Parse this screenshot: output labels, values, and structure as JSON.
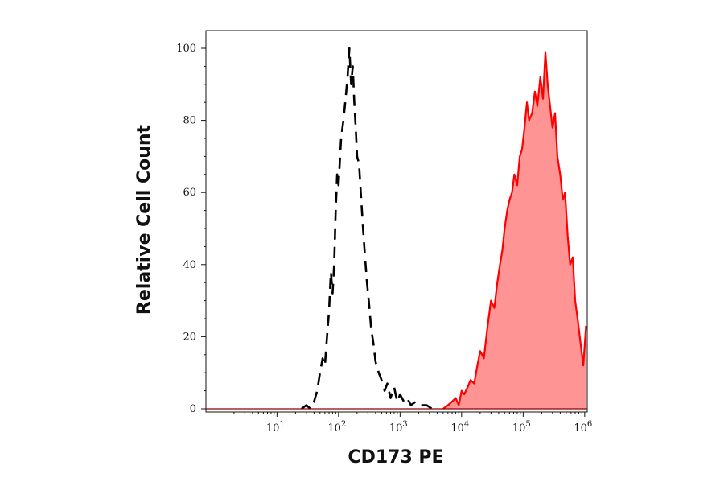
{
  "chart_data": {
    "type": "area",
    "title": "",
    "xlabel": "CD173 PE",
    "ylabel": "Relative Cell Count",
    "x_scale": "log",
    "xlim": [
      0.7,
      1100000
    ],
    "ylim": [
      0,
      100
    ],
    "grid": false,
    "legend": "none",
    "x_ticks": [
      {
        "base": "10",
        "exp": "1",
        "value": 10
      },
      {
        "base": "10",
        "exp": "2",
        "value": 100
      },
      {
        "base": "10",
        "exp": "3",
        "value": 1000
      },
      {
        "base": "10",
        "exp": "4",
        "value": 10000
      },
      {
        "base": "10",
        "exp": "5",
        "value": 100000
      },
      {
        "base": "10",
        "exp": "6",
        "value": 1000000
      }
    ],
    "y_ticks": [
      "0",
      "20",
      "40",
      "60",
      "80",
      "100"
    ],
    "series": [
      {
        "style": "dashed",
        "color": "#000000",
        "x": [
          25,
          30,
          35,
          40,
          45,
          50,
          55,
          60,
          65,
          70,
          75,
          80,
          85,
          90,
          95,
          100,
          110,
          120,
          130,
          140,
          150,
          160,
          170,
          180,
          190,
          200,
          215,
          230,
          250,
          270,
          290,
          310,
          340,
          370,
          400,
          450,
          500,
          560,
          620,
          700,
          800,
          900,
          1000,
          1150,
          1300,
          1500,
          1800,
          2200,
          2700,
          3300,
          4000
        ],
        "y": [
          0,
          1,
          0,
          2,
          5,
          10,
          14,
          12,
          20,
          27,
          38,
          32,
          40,
          55,
          65,
          62,
          75,
          80,
          86,
          92,
          100,
          90,
          95,
          85,
          78,
          70,
          68,
          60,
          50,
          42,
          35,
          30,
          22,
          18,
          13,
          10,
          8,
          5,
          7,
          3,
          6,
          2,
          4,
          2,
          3,
          1,
          2,
          1,
          1,
          0,
          0
        ]
      },
      {
        "style": "filled",
        "color": "#ff0000",
        "fill": "#ff9494",
        "x": [
          5000,
          6000,
          7000,
          8000,
          9000,
          10000,
          11000,
          12500,
          14000,
          16000,
          18000,
          20000,
          23000,
          26000,
          30000,
          34000,
          38000,
          42000,
          46000,
          50000,
          55000,
          60000,
          66000,
          72000,
          80000,
          88000,
          96000,
          105000,
          115000,
          125000,
          140000,
          155000,
          170000,
          190000,
          210000,
          230000,
          250000,
          270000,
          300000,
          330000,
          360000,
          400000,
          440000,
          480000,
          530000,
          580000,
          640000,
          700000,
          780000,
          860000,
          950000,
          1050000
        ],
        "y": [
          0,
          1,
          2,
          3,
          1,
          5,
          4,
          6,
          8,
          7,
          12,
          16,
          14,
          22,
          30,
          28,
          35,
          40,
          44,
          50,
          55,
          58,
          60,
          65,
          62,
          70,
          72,
          78,
          85,
          80,
          82,
          88,
          84,
          92,
          86,
          99,
          90,
          85,
          78,
          82,
          70,
          65,
          58,
          60,
          48,
          40,
          42,
          30,
          24,
          18,
          12,
          23
        ]
      }
    ]
  }
}
